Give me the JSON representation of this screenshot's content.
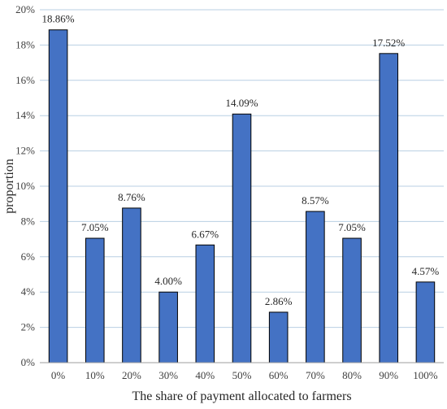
{
  "chart_data": {
    "type": "bar",
    "categories": [
      "0%",
      "10%",
      "20%",
      "30%",
      "40%",
      "50%",
      "60%",
      "70%",
      "80%",
      "90%",
      "100%"
    ],
    "values": [
      18.86,
      7.05,
      8.76,
      4.0,
      6.67,
      14.09,
      2.86,
      8.57,
      7.05,
      17.52,
      4.57
    ],
    "data_labels": [
      "18.86%",
      "7.05%",
      "8.76%",
      "4.00%",
      "6.67%",
      "14.09%",
      "2.86%",
      "8.57%",
      "7.05%",
      "17.52%",
      "4.57%"
    ],
    "title": "",
    "xlabel": "The share of payment allocated to farmers",
    "ylabel": "proportion",
    "ylim": [
      0,
      20
    ],
    "yticks": [
      0,
      2,
      4,
      6,
      8,
      10,
      12,
      14,
      16,
      18,
      20
    ],
    "ytick_labels": [
      "0%",
      "2%",
      "4%",
      "6%",
      "8%",
      "10%",
      "12%",
      "14%",
      "16%",
      "18%",
      "20%"
    ],
    "grid": true,
    "legend": "none",
    "colors": {
      "bar_fill": "#4472c4",
      "bar_edge": "#000000",
      "grid": "#b8cfe3"
    }
  }
}
